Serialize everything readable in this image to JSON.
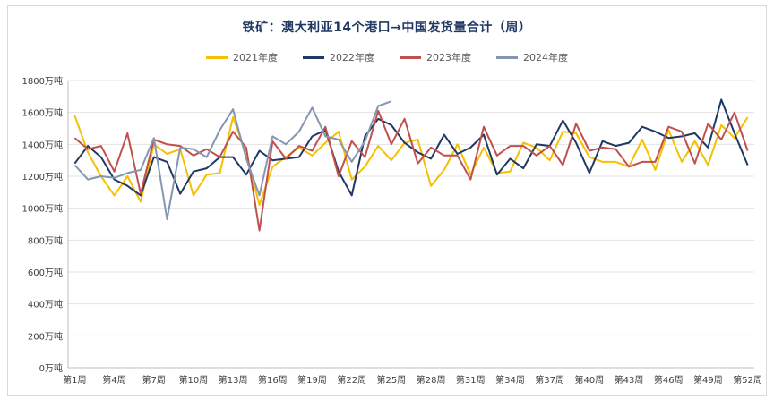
{
  "chart_data": {
    "type": "line",
    "title": "铁矿：澳大利亚14个港口→中国发货量合计（周）",
    "xlabel": "",
    "ylabel": "",
    "ylim": [
      0,
      1800
    ],
    "y_unit": "万吨",
    "y_ticks": [
      "0万吨",
      "200万吨",
      "400万吨",
      "600万吨",
      "800万吨",
      "1000万吨",
      "1200万吨",
      "1400万吨",
      "1600万吨",
      "1800万吨"
    ],
    "x_ticks": [
      "第1周",
      "第4周",
      "第7周",
      "第10周",
      "第13周",
      "第16周",
      "第19周",
      "第22周",
      "第25周",
      "第28周",
      "第31周",
      "第34周",
      "第37周",
      "第40周",
      "第43周",
      "第46周",
      "第49周",
      "第52周"
    ],
    "legend_position": "top",
    "grid": true,
    "series": [
      {
        "name": "2021年度",
        "color": "#f5c000",
        "values": [
          1580,
          1350,
          1200,
          1080,
          1200,
          1040,
          1400,
          1340,
          1370,
          1080,
          1210,
          1220,
          1570,
          1340,
          1020,
          1260,
          1320,
          1380,
          1330,
          1410,
          1480,
          1180,
          1260,
          1390,
          1300,
          1410,
          1430,
          1140,
          1240,
          1400,
          1210,
          1380,
          1220,
          1230,
          1410,
          1380,
          1300,
          1480,
          1470,
          1320,
          1290,
          1290,
          1260,
          1430,
          1240,
          1490,
          1290,
          1420,
          1270,
          1520,
          1440,
          1570
        ]
      },
      {
        "name": "2022年度",
        "color": "#1f3864",
        "values": [
          1280,
          1390,
          1320,
          1180,
          1140,
          1080,
          1320,
          1290,
          1090,
          1230,
          1250,
          1320,
          1320,
          1210,
          1360,
          1300,
          1310,
          1320,
          1450,
          1490,
          1230,
          1080,
          1450,
          1560,
          1520,
          1410,
          1350,
          1310,
          1460,
          1340,
          1380,
          1460,
          1210,
          1310,
          1250,
          1400,
          1390,
          1550,
          1410,
          1220,
          1420,
          1390,
          1410,
          1510,
          1480,
          1440,
          1450,
          1470,
          1380,
          1680,
          1470,
          1270
        ]
      },
      {
        "name": "2023年度",
        "color": "#c0504d",
        "values": [
          1440,
          1370,
          1390,
          1230,
          1470,
          1090,
          1430,
          1400,
          1390,
          1330,
          1370,
          1320,
          1480,
          1380,
          860,
          1420,
          1310,
          1390,
          1360,
          1510,
          1200,
          1420,
          1320,
          1610,
          1400,
          1560,
          1280,
          1380,
          1330,
          1330,
          1180,
          1510,
          1330,
          1390,
          1390,
          1330,
          1390,
          1270,
          1530,
          1360,
          1380,
          1370,
          1260,
          1290,
          1290,
          1510,
          1480,
          1280,
          1530,
          1430,
          1600,
          1360
        ]
      },
      {
        "name": "2024年度",
        "color": "#8496b0",
        "values": [
          1270,
          1180,
          1200,
          1190,
          1220,
          1240,
          1440,
          930,
          1380,
          1370,
          1320,
          1490,
          1620,
          1310,
          1080,
          1450,
          1400,
          1480,
          1630,
          1450,
          1430,
          1290,
          1420,
          1640,
          1670
        ]
      }
    ]
  }
}
